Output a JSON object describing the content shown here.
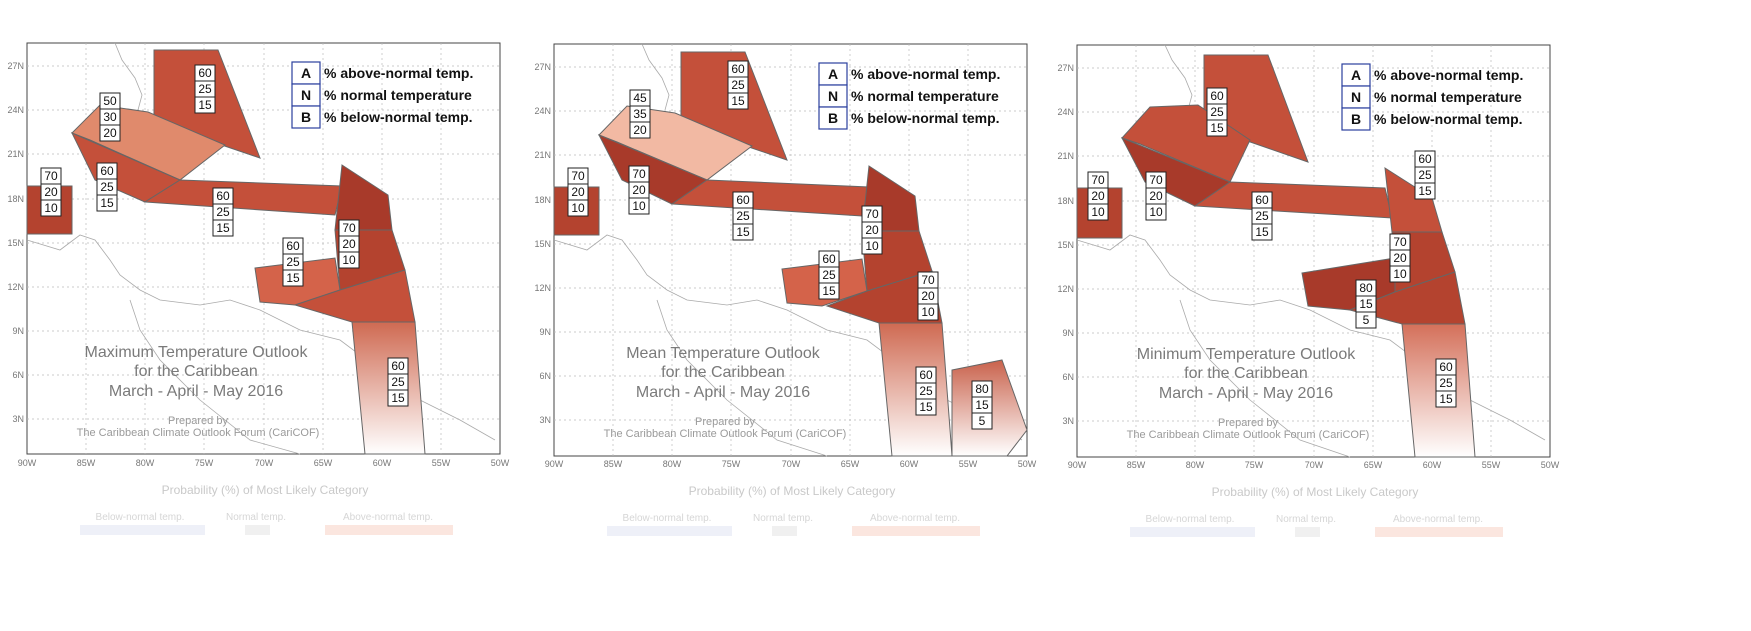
{
  "maps": [
    {
      "title_lines": [
        "Maximum Temperature Outlook",
        "for the Caribbean",
        "March - April - May 2016"
      ],
      "prepared_by": "Prepared by",
      "organization": "The Caribbean Climate Outlook Forum (CariCOF)",
      "probabilities": [
        {
          "A": "60",
          "N": "25",
          "B": "15"
        },
        {
          "A": "50",
          "N": "30",
          "B": "20"
        },
        {
          "A": "70",
          "N": "20",
          "B": "10"
        },
        {
          "A": "60",
          "N": "25",
          "B": "15"
        },
        {
          "A": "60",
          "N": "25",
          "B": "15"
        },
        {
          "A": "70",
          "N": "20",
          "B": "10"
        },
        {
          "A": "60",
          "N": "25",
          "B": "15"
        },
        {
          "A": "60",
          "N": "25",
          "B": "15"
        }
      ]
    },
    {
      "title_lines": [
        "Mean Temperature Outlook",
        "for the Caribbean",
        "March - April - May 2016"
      ],
      "prepared_by": "Prepared by",
      "organization": "The Caribbean Climate Outlook Forum (CariCOF)",
      "probabilities": [
        {
          "A": "60",
          "N": "25",
          "B": "15"
        },
        {
          "A": "45",
          "N": "35",
          "B": "20"
        },
        {
          "A": "70",
          "N": "20",
          "B": "10"
        },
        {
          "A": "70",
          "N": "20",
          "B": "10"
        },
        {
          "A": "60",
          "N": "25",
          "B": "15"
        },
        {
          "A": "70",
          "N": "20",
          "B": "10"
        },
        {
          "A": "60",
          "N": "25",
          "B": "15"
        },
        {
          "A": "70",
          "N": "20",
          "B": "10"
        },
        {
          "A": "60",
          "N": "25",
          "B": "15"
        },
        {
          "A": "80",
          "N": "15",
          "B": "5"
        }
      ]
    },
    {
      "title_lines": [
        "Minimum Temperature Outlook",
        "for the Caribbean",
        "March - April - May 2016"
      ],
      "prepared_by": "Prepared by",
      "organization": "The Caribbean Climate Outlook Forum (CariCOF)",
      "probabilities": [
        {
          "A": "60",
          "N": "25",
          "B": "15"
        },
        {
          "A": "70",
          "N": "20",
          "B": "10"
        },
        {
          "A": "70",
          "N": "20",
          "B": "10"
        },
        {
          "A": "60",
          "N": "25",
          "B": "15"
        },
        {
          "A": "60",
          "N": "25",
          "B": "15"
        },
        {
          "A": "70",
          "N": "20",
          "B": "10"
        },
        {
          "A": "80",
          "N": "15",
          "B": "5"
        },
        {
          "A": "60",
          "N": "25",
          "B": "15"
        }
      ]
    }
  ],
  "key": [
    {
      "letter": "A",
      "text": "% above-normal temp."
    },
    {
      "letter": "N",
      "text": "% normal temperature"
    },
    {
      "letter": "B",
      "text": "% below-normal temp."
    }
  ],
  "lat_ticks": [
    "27N",
    "24N",
    "21N",
    "18N",
    "15N",
    "12N",
    "9N",
    "6N",
    "3N"
  ],
  "lon_ticks": [
    "90W",
    "85W",
    "80W",
    "75W",
    "70W",
    "65W",
    "60W",
    "55W",
    "50W"
  ],
  "legend": {
    "title": "Probability (%) of Most Likely Category",
    "below": "Below-normal temp.",
    "normal": "Normal temp.",
    "above": "Above-normal temp."
  },
  "colors": {
    "dark": "#a83a2a",
    "mid": "#c4503a",
    "light": "#e08a6c",
    "pale": "#f2b9a3"
  }
}
